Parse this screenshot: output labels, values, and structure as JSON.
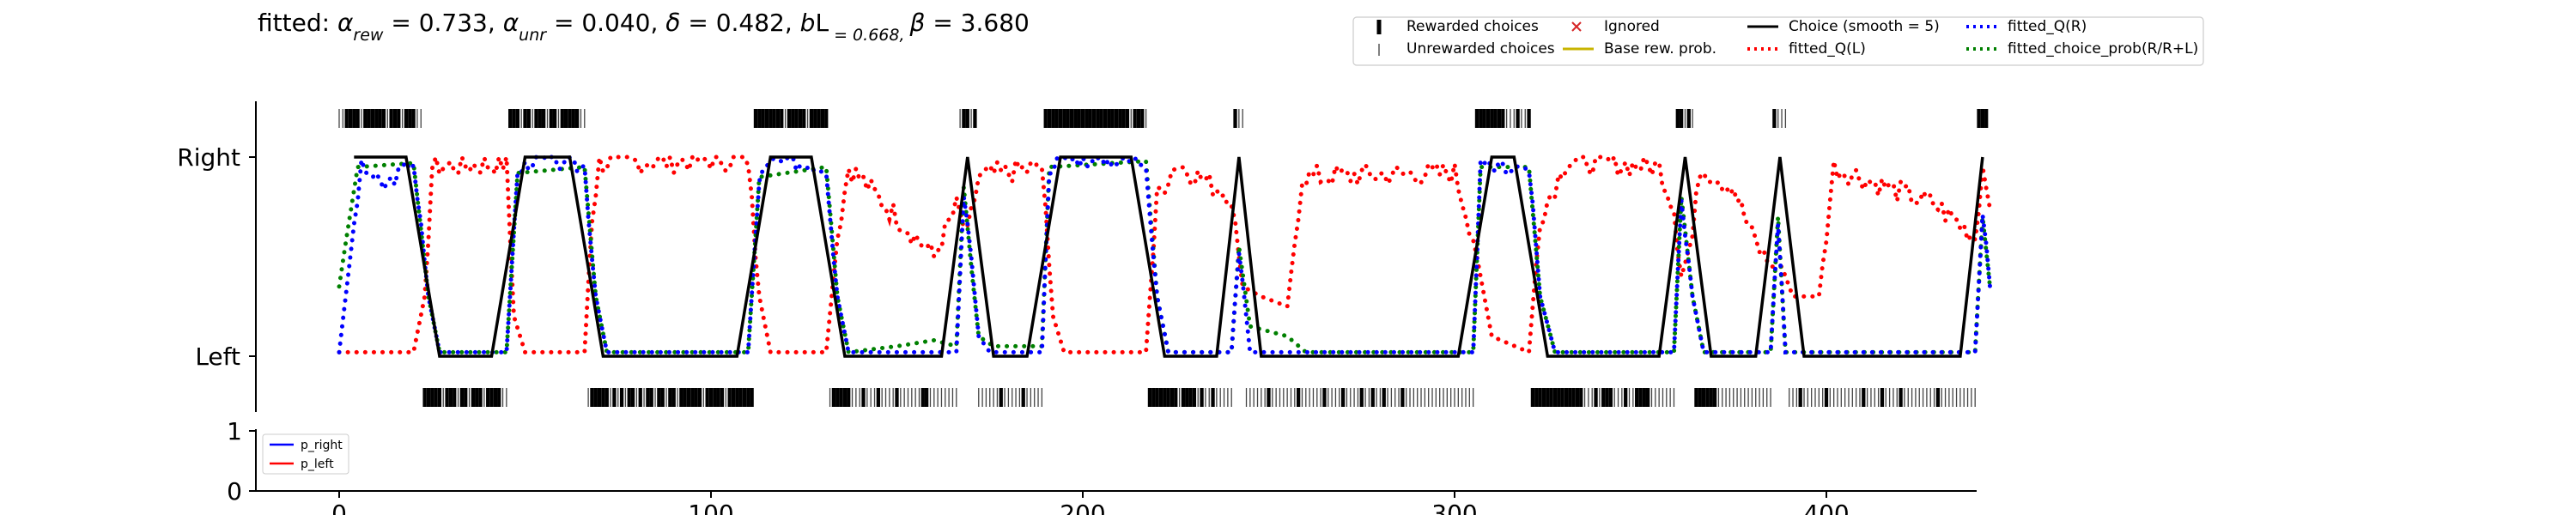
{
  "chart_data": {
    "type": "line",
    "title": "fitted: α_rew = 0.733, α_unr = 0.040, δ = 0.482, b_L = 0.668, β = 3.680",
    "title_parts": [
      "fitted: ",
      "α",
      "rew",
      " = 0.733, ",
      "α",
      "unr",
      " = 0.040, ",
      "δ",
      " = 0.482, ",
      "b",
      "L",
      " = 0.668, ",
      "β",
      " = 3.680"
    ],
    "xlim": [
      -22,
      444
    ],
    "x_ticks": [
      0,
      100,
      200,
      300,
      400
    ],
    "x_tick_labels": [
      "0",
      "100",
      "200",
      "300",
      "400"
    ],
    "y_ticks": [
      "Right",
      "Left"
    ],
    "lower_panel": {
      "ylim": [
        0,
        1
      ],
      "y_tick_labels": [
        "1",
        "0"
      ],
      "series": [
        "p_right",
        "p_left"
      ],
      "legend": "upper-left"
    },
    "legend_position": "top-right",
    "legend": [
      {
        "label": "Rewarded choices",
        "marker": "thick-bar",
        "color": "#000000"
      },
      {
        "label": "Unrewarded choices",
        "marker": "thin-bar",
        "color": "#555555"
      },
      {
        "label": "Ignored",
        "marker": "x",
        "color": "#d62728"
      },
      {
        "label": "Base rew. prob.",
        "marker": "line",
        "color": "#c8b400"
      },
      {
        "label": "Choice (smooth = 5)",
        "marker": "line",
        "color": "#000000"
      },
      {
        "label": "fitted_Q(L)",
        "marker": "dotted",
        "color": "#ff0000"
      },
      {
        "label": "fitted_Q(R)",
        "marker": "dotted",
        "color": "#0000ff"
      },
      {
        "label": "fitted_choice_prob(R/R+L)",
        "marker": "dotted",
        "color": "#008000"
      }
    ],
    "lower_legend": [
      {
        "label": "p_right",
        "color": "#0000ff"
      },
      {
        "label": "p_left",
        "color": "#ff0000"
      }
    ],
    "choice_blocks": [
      {
        "side": "R",
        "start": 0,
        "end": 22
      },
      {
        "side": "L",
        "start": 23,
        "end": 45
      },
      {
        "side": "R",
        "start": 46,
        "end": 66
      },
      {
        "side": "L",
        "start": 67,
        "end": 111
      },
      {
        "side": "R",
        "start": 112,
        "end": 131
      },
      {
        "side": "L",
        "start": 132,
        "end": 166
      },
      {
        "side": "R",
        "start": 167,
        "end": 171
      },
      {
        "side": "L",
        "start": 172,
        "end": 189
      },
      {
        "side": "R",
        "start": 190,
        "end": 217
      },
      {
        "side": "L",
        "start": 218,
        "end": 240
      },
      {
        "side": "R",
        "start": 241,
        "end": 243
      },
      {
        "side": "L",
        "start": 244,
        "end": 305
      },
      {
        "side": "R",
        "start": 306,
        "end": 320
      },
      {
        "side": "L",
        "start": 321,
        "end": 359
      },
      {
        "side": "R",
        "start": 360,
        "end": 364
      },
      {
        "side": "L",
        "start": 365,
        "end": 385
      },
      {
        "side": "R",
        "start": 386,
        "end": 389
      },
      {
        "side": "L",
        "start": 390,
        "end": 440
      },
      {
        "side": "R",
        "start": 441,
        "end": 443
      }
    ],
    "rewarded_trials": [
      2,
      3,
      4,
      5,
      7,
      8,
      9,
      10,
      11,
      12,
      14,
      15,
      16,
      18,
      19,
      20,
      23,
      24,
      25,
      26,
      27,
      29,
      30,
      31,
      33,
      34,
      36,
      37,
      38,
      40,
      41,
      42,
      43,
      46,
      47,
      48,
      50,
      51,
      53,
      54,
      55,
      57,
      58,
      60,
      61,
      62,
      63,
      64,
      68,
      69,
      70,
      71,
      72,
      74,
      76,
      78,
      79,
      81,
      83,
      84,
      86,
      87,
      89,
      90,
      92,
      93,
      94,
      95,
      96,
      97,
      99,
      100,
      101,
      102,
      103,
      105,
      106,
      107,
      108,
      109,
      110,
      111,
      112,
      113,
      114,
      115,
      116,
      117,
      118,
      119,
      121,
      122,
      123,
      124,
      125,
      127,
      128,
      129,
      130,
      131,
      133,
      134,
      135,
      136,
      137,
      141,
      145,
      150,
      157,
      158,
      168,
      169,
      171,
      178,
      184,
      190,
      191,
      192,
      193,
      194,
      195,
      196,
      197,
      198,
      199,
      200,
      201,
      202,
      203,
      204,
      205,
      206,
      207,
      208,
      209,
      210,
      211,
      212,
      214,
      215,
      216,
      218,
      219,
      220,
      221,
      222,
      223,
      224,
      225,
      227,
      228,
      229,
      230,
      232,
      235,
      241,
      250,
      258,
      265,
      270,
      275,
      278,
      281,
      286,
      306,
      307,
      308,
      309,
      310,
      311,
      312,
      313,
      317,
      320,
      321,
      322,
      323,
      324,
      325,
      326,
      327,
      328,
      329,
      330,
      331,
      332,
      333,
      334,
      338,
      340,
      341,
      342,
      346,
      349,
      350,
      351,
      352,
      360,
      361,
      363,
      365,
      366,
      367,
      368,
      369,
      370,
      386,
      393,
      400,
      410,
      415,
      420,
      430,
      441,
      442,
      443
    ],
    "q_left_samples": [
      [
        0,
        0.02
      ],
      [
        20,
        0.02
      ],
      [
        23,
        0.3
      ],
      [
        25,
        0.95
      ],
      [
        45,
        0.97
      ],
      [
        47,
        0.2
      ],
      [
        50,
        0.02
      ],
      [
        66,
        0.02
      ],
      [
        68,
        0.7
      ],
      [
        70,
        0.97
      ],
      [
        110,
        0.99
      ],
      [
        113,
        0.3
      ],
      [
        116,
        0.02
      ],
      [
        131,
        0.02
      ],
      [
        134,
        0.6
      ],
      [
        137,
        0.95
      ],
      [
        150,
        0.7
      ],
      [
        160,
        0.5
      ],
      [
        166,
        0.75
      ],
      [
        169,
        0.6
      ],
      [
        172,
        0.9
      ],
      [
        189,
        0.95
      ],
      [
        192,
        0.2
      ],
      [
        195,
        0.02
      ],
      [
        217,
        0.02
      ],
      [
        220,
        0.8
      ],
      [
        225,
        0.97
      ],
      [
        240,
        0.8
      ],
      [
        243,
        0.35
      ],
      [
        248,
        0.3
      ],
      [
        255,
        0.25
      ],
      [
        259,
        0.9
      ],
      [
        300,
        0.92
      ],
      [
        305,
        0.6
      ],
      [
        310,
        0.1
      ],
      [
        320,
        0.02
      ],
      [
        323,
        0.7
      ],
      [
        330,
        0.98
      ],
      [
        355,
        0.95
      ],
      [
        359,
        0.75
      ],
      [
        361,
        0.4
      ],
      [
        364,
        0.6
      ],
      [
        366,
        0.95
      ],
      [
        375,
        0.85
      ],
      [
        380,
        0.6
      ],
      [
        385,
        0.45
      ],
      [
        388,
        0.45
      ],
      [
        391,
        0.3
      ],
      [
        398,
        0.3
      ],
      [
        402,
        0.95
      ],
      [
        430,
        0.75
      ],
      [
        440,
        0.6
      ],
      [
        442,
        0.95
      ],
      [
        444,
        0.8
      ]
    ],
    "q_right_samples": [
      [
        0,
        0.02
      ],
      [
        3,
        0.5
      ],
      [
        6,
        0.95
      ],
      [
        12,
        0.85
      ],
      [
        20,
        0.98
      ],
      [
        24,
        0.3
      ],
      [
        27,
        0.02
      ],
      [
        45,
        0.02
      ],
      [
        48,
        0.92
      ],
      [
        52,
        0.99
      ],
      [
        66,
        0.95
      ],
      [
        69,
        0.3
      ],
      [
        72,
        0.02
      ],
      [
        110,
        0.02
      ],
      [
        113,
        0.9
      ],
      [
        117,
        0.98
      ],
      [
        131,
        0.95
      ],
      [
        134,
        0.3
      ],
      [
        137,
        0.02
      ],
      [
        166,
        0.02
      ],
      [
        168,
        0.8
      ],
      [
        170,
        0.5
      ],
      [
        172,
        0.1
      ],
      [
        175,
        0.02
      ],
      [
        189,
        0.02
      ],
      [
        191,
        0.95
      ],
      [
        195,
        0.99
      ],
      [
        217,
        0.98
      ],
      [
        220,
        0.3
      ],
      [
        223,
        0.02
      ],
      [
        240,
        0.02
      ],
      [
        242,
        0.55
      ],
      [
        245,
        0.02
      ],
      [
        305,
        0.02
      ],
      [
        307,
        0.95
      ],
      [
        320,
        0.95
      ],
      [
        323,
        0.3
      ],
      [
        327,
        0.02
      ],
      [
        359,
        0.02
      ],
      [
        361,
        0.8
      ],
      [
        364,
        0.3
      ],
      [
        367,
        0.02
      ],
      [
        385,
        0.02
      ],
      [
        387,
        0.7
      ],
      [
        389,
        0.02
      ],
      [
        440,
        0.02
      ],
      [
        442,
        0.7
      ],
      [
        444,
        0.35
      ]
    ],
    "choice_prob_samples": [
      [
        0,
        0.35
      ],
      [
        2,
        0.6
      ],
      [
        5,
        0.95
      ],
      [
        20,
        0.97
      ],
      [
        24,
        0.3
      ],
      [
        27,
        0.02
      ],
      [
        45,
        0.02
      ],
      [
        48,
        0.92
      ],
      [
        66,
        0.95
      ],
      [
        69,
        0.3
      ],
      [
        72,
        0.02
      ],
      [
        110,
        0.02
      ],
      [
        113,
        0.9
      ],
      [
        131,
        0.95
      ],
      [
        134,
        0.3
      ],
      [
        137,
        0.02
      ],
      [
        150,
        0.05
      ],
      [
        160,
        0.08
      ],
      [
        166,
        0.05
      ],
      [
        168,
        0.85
      ],
      [
        170,
        0.45
      ],
      [
        172,
        0.1
      ],
      [
        176,
        0.05
      ],
      [
        189,
        0.05
      ],
      [
        191,
        0.95
      ],
      [
        217,
        0.98
      ],
      [
        220,
        0.3
      ],
      [
        223,
        0.02
      ],
      [
        240,
        0.02
      ],
      [
        242,
        0.55
      ],
      [
        245,
        0.15
      ],
      [
        255,
        0.1
      ],
      [
        260,
        0.02
      ],
      [
        305,
        0.02
      ],
      [
        307,
        0.95
      ],
      [
        320,
        0.95
      ],
      [
        323,
        0.3
      ],
      [
        327,
        0.02
      ],
      [
        359,
        0.02
      ],
      [
        361,
        0.8
      ],
      [
        364,
        0.3
      ],
      [
        367,
        0.02
      ],
      [
        385,
        0.02
      ],
      [
        387,
        0.7
      ],
      [
        389,
        0.02
      ],
      [
        440,
        0.02
      ],
      [
        442,
        0.7
      ],
      [
        444,
        0.35
      ]
    ]
  }
}
